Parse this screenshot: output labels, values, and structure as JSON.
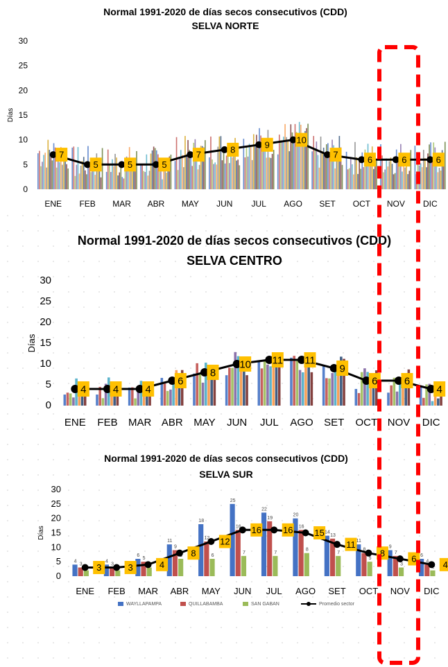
{
  "chart_data": [
    {
      "type": "bar",
      "title": "Normal 1991-2020 de días secos consecutivos  (CDD)",
      "subtitle": "SELVA NORTE",
      "ylabel": "Días",
      "ylim": [
        0,
        30
      ],
      "yticks": [
        0,
        5,
        10,
        15,
        20,
        25,
        30
      ],
      "categories": [
        "ENE",
        "FEB",
        "MAR",
        "ABR",
        "MAY",
        "JUN",
        "JUL",
        "AGO",
        "SET",
        "OCT",
        "NOV",
        "DIC"
      ],
      "line_series": {
        "values": [
          7,
          5,
          5,
          5,
          7,
          8,
          9,
          10,
          7,
          6,
          6,
          6
        ]
      }
    },
    {
      "type": "bar",
      "title": "Normal 1991-2020 de días secos consecutivos  (CDD)",
      "subtitle": "SELVA CENTRO",
      "ylabel": "Días",
      "ylim": [
        0,
        30
      ],
      "yticks": [
        0,
        5,
        10,
        15,
        20,
        25,
        30
      ],
      "categories": [
        "ENE",
        "FEB",
        "MAR",
        "ABR",
        "MAY",
        "JUN",
        "JUL",
        "AGO",
        "SET",
        "OCT",
        "NOV",
        "DIC"
      ],
      "line_series": {
        "values": [
          4,
          4,
          4,
          6,
          8,
          10,
          11,
          11,
          9,
          6,
          6,
          4
        ]
      }
    },
    {
      "type": "bar",
      "title": "Normal 1991-2020 de días secos consecutivos  (CDD)",
      "subtitle": "SELVA SUR",
      "ylabel": "Días",
      "ylim": [
        0,
        30
      ],
      "yticks": [
        0,
        5,
        10,
        15,
        20,
        25,
        30
      ],
      "categories": [
        "ENE",
        "FEB",
        "MAR",
        "ABR",
        "MAY",
        "JUN",
        "JUL",
        "AGO",
        "SET",
        "OCT",
        "NOV",
        "DIC"
      ],
      "series": [
        {
          "name": "WAYLLAPAMPA",
          "color": "#4472c4",
          "values": [
            4,
            4,
            6,
            11,
            18,
            25,
            22,
            20,
            14,
            11,
            9,
            6
          ]
        },
        {
          "name": "QUILLABAMBA",
          "color": "#c0504d",
          "values": [
            3,
            3,
            5,
            9,
            12,
            16,
            19,
            16,
            13,
            8,
            7,
            4
          ]
        },
        {
          "name": "SAN GABAN",
          "color": "#9bbb59",
          "values": [
            2,
            2,
            3,
            6,
            6,
            7,
            7,
            8,
            7,
            5,
            3,
            2
          ]
        }
      ],
      "line_series": {
        "name": "Promedio sector",
        "values": [
          3,
          3,
          4,
          8,
          12,
          16,
          16,
          15,
          11,
          8,
          6,
          4
        ]
      },
      "legend": "bottom"
    }
  ],
  "highlight": {
    "color": "#ff0000",
    "style": "dashed"
  }
}
